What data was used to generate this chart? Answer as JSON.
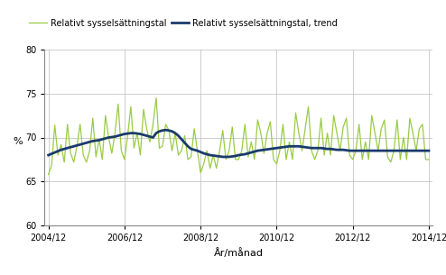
{
  "ylabel": "%",
  "xlabel": "År/månad",
  "ylim": [
    60,
    80
  ],
  "yticks": [
    60,
    65,
    70,
    75,
    80
  ],
  "legend_labels": [
    "Relativt sysselsättningstal",
    "Relativt sysselsättningstal, trend"
  ],
  "line_color_main": "#99cc44",
  "line_color_trend": "#1a3a6b",
  "grid_color": "#bbbbbb",
  "xtick_labels": [
    "2004/12",
    "2006/12",
    "2008/12",
    "2010/12",
    "2012/12",
    "2014/12"
  ],
  "raw_values": [
    65.8,
    66.8,
    71.4,
    68.0,
    69.2,
    67.2,
    71.5,
    68.2,
    67.2,
    69.0,
    71.5,
    68.0,
    67.2,
    68.5,
    72.2,
    67.8,
    69.8,
    67.5,
    72.5,
    70.0,
    68.2,
    70.5,
    73.8,
    68.5,
    67.5,
    70.2,
    73.5,
    68.8,
    70.5,
    68.0,
    73.2,
    71.0,
    69.5,
    71.5,
    74.5,
    68.8,
    69.0,
    71.5,
    70.8,
    68.5,
    70.5,
    68.0,
    68.5,
    70.2,
    67.5,
    67.8,
    71.0,
    68.5,
    66.0,
    67.0,
    68.5,
    66.5,
    68.0,
    66.5,
    68.5,
    70.8,
    67.5,
    68.5,
    71.2,
    67.5,
    67.5,
    68.5,
    71.5,
    67.8,
    69.5,
    67.5,
    72.0,
    70.5,
    68.2,
    70.5,
    71.8,
    67.5,
    67.0,
    68.5,
    71.5,
    67.5,
    69.5,
    67.5,
    72.8,
    70.5,
    68.5,
    71.0,
    73.5,
    68.5,
    67.5,
    68.5,
    72.2,
    68.0,
    70.5,
    68.0,
    72.5,
    70.5,
    68.5,
    71.2,
    72.2,
    68.0,
    67.5,
    68.5,
    71.5,
    67.5,
    69.5,
    67.5,
    72.5,
    70.5,
    68.5,
    71.0,
    72.0,
    67.8,
    67.2,
    68.5,
    72.0,
    67.5,
    70.0,
    67.5,
    72.2,
    70.5,
    68.5,
    71.0,
    71.5,
    67.5,
    67.5
  ],
  "trend_values": [
    68.0,
    68.15,
    68.3,
    68.45,
    68.6,
    68.7,
    68.8,
    68.9,
    69.0,
    69.1,
    69.2,
    69.3,
    69.4,
    69.5,
    69.6,
    69.65,
    69.7,
    69.8,
    69.9,
    70.0,
    70.05,
    70.1,
    70.2,
    70.3,
    70.4,
    70.45,
    70.5,
    70.5,
    70.45,
    70.4,
    70.3,
    70.2,
    70.1,
    70.0,
    70.5,
    70.7,
    70.8,
    70.85,
    70.8,
    70.7,
    70.5,
    70.2,
    69.8,
    69.4,
    69.0,
    68.7,
    68.6,
    68.5,
    68.35,
    68.2,
    68.1,
    68.0,
    67.95,
    67.9,
    67.85,
    67.8,
    67.8,
    67.8,
    67.85,
    67.9,
    68.0,
    68.05,
    68.1,
    68.2,
    68.3,
    68.4,
    68.5,
    68.55,
    68.6,
    68.65,
    68.7,
    68.75,
    68.8,
    68.85,
    68.9,
    68.95,
    69.0,
    69.0,
    69.0,
    69.0,
    68.95,
    68.9,
    68.85,
    68.8,
    68.8,
    68.8,
    68.8,
    68.75,
    68.7,
    68.7,
    68.65,
    68.6,
    68.6,
    68.6,
    68.55,
    68.5,
    68.5,
    68.5,
    68.5,
    68.5,
    68.5,
    68.5,
    68.5,
    68.5,
    68.5,
    68.5,
    68.5,
    68.5,
    68.5,
    68.5,
    68.5,
    68.5,
    68.5,
    68.5,
    68.5,
    68.5,
    68.5,
    68.5,
    68.5,
    68.5,
    68.5
  ]
}
